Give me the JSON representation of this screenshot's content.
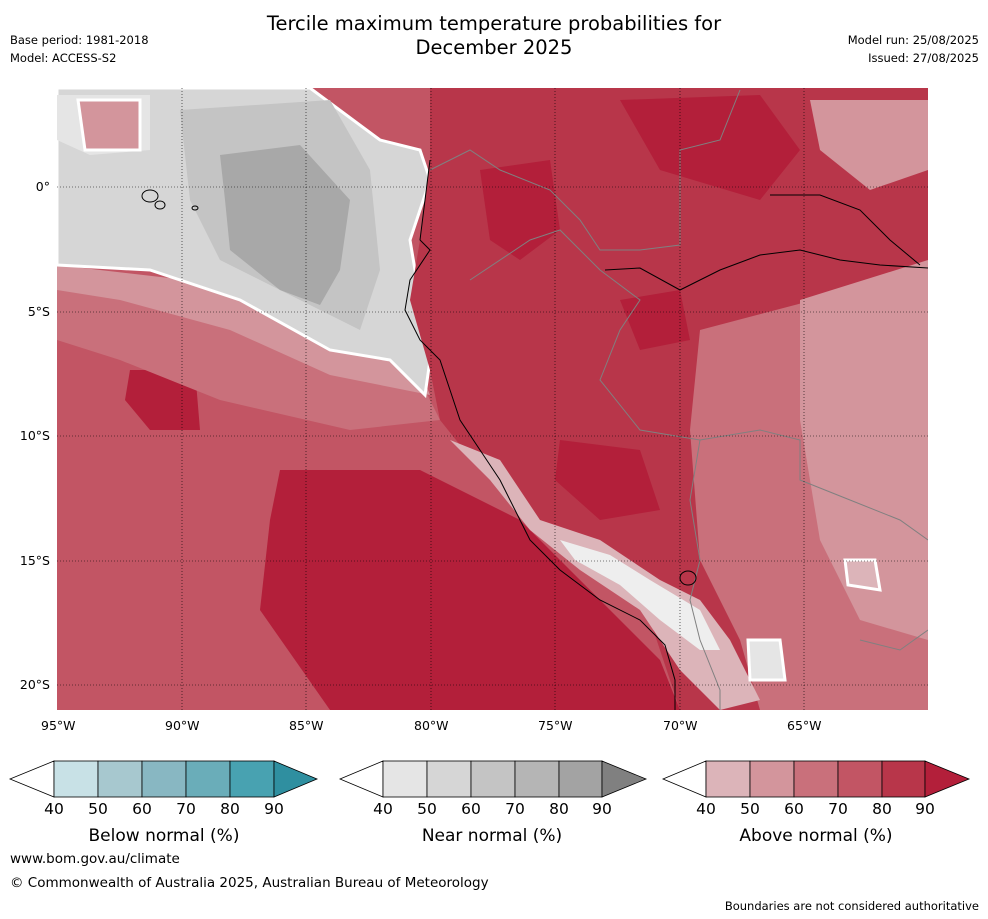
{
  "title_line1": "Tercile maximum temperature probabilities for",
  "title_line2": "December 2025",
  "meta_left": {
    "base_period": "Base period: 1981-2018",
    "model": "Model: ACCESS-S2"
  },
  "meta_right": {
    "model_run": "Model run: 25/08/2025",
    "issued": "Issued: 27/08/2025"
  },
  "map": {
    "x_ticks": [
      "95°W",
      "90°W",
      "85°W",
      "80°W",
      "75°W",
      "70°W",
      "65°W"
    ],
    "y_ticks": [
      "0°",
      "5°S",
      "10°S",
      "15°S",
      "20°S"
    ],
    "colors": {
      "land_border": "#808080",
      "coast": "#000000",
      "above_50": "#dcb4b9",
      "above_60": "#d3959c",
      "above_70": "#c9707b",
      "above_80": "#c25564",
      "above_90": "#b8364a",
      "above_max": "#b31f3a",
      "near_40": "#e5e5e5",
      "near_50": "#d6d6d6",
      "near_60": "#c4c4c4",
      "near_70": "#a8a8a8"
    }
  },
  "colorbars": [
    {
      "label": "Below normal (%)",
      "ticks": [
        "40",
        "50",
        "60",
        "70",
        "80",
        "90"
      ],
      "colors": [
        "#ffffff",
        "#c8e1e6",
        "#a7c8cf",
        "#88b7c2",
        "#6aadb9",
        "#48a2b1",
        "#2f8fa0"
      ]
    },
    {
      "label": "Near normal (%)",
      "ticks": [
        "40",
        "50",
        "60",
        "70",
        "80",
        "90"
      ],
      "colors": [
        "#ffffff",
        "#e5e5e5",
        "#d6d6d6",
        "#c4c4c4",
        "#b5b5b5",
        "#a3a3a3",
        "#808080"
      ]
    },
    {
      "label": "Above normal (%)",
      "ticks": [
        "40",
        "50",
        "60",
        "70",
        "80",
        "90"
      ],
      "colors": [
        "#ffffff",
        "#dcb4b9",
        "#d3959c",
        "#c9707b",
        "#c25564",
        "#b8364a",
        "#b31f3a"
      ]
    }
  ],
  "footer": {
    "url": "www.bom.gov.au/climate",
    "copyright": "© Commonwealth of Australia 2025, Australian Bureau of Meteorology",
    "note": "Boundaries are not considered authoritative"
  }
}
